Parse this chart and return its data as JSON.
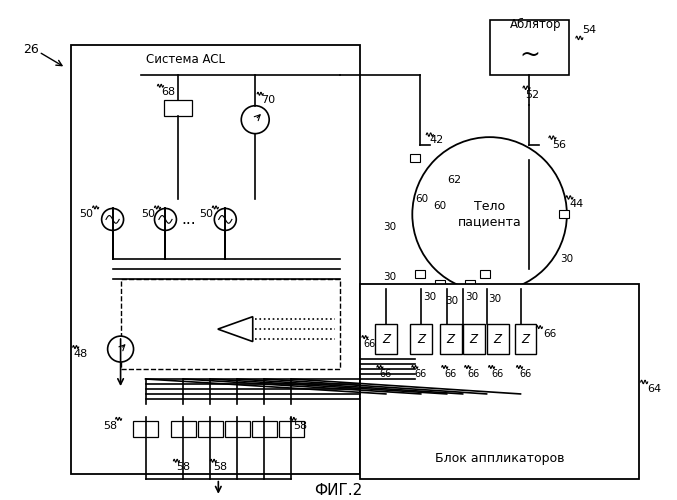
{
  "title": "ФИГ.2",
  "bg_color": "#ffffff",
  "line_color": "#000000",
  "label_26": "26",
  "label_acl": "Система ACL",
  "label_ablator": "Аблятор",
  "label_body": "Тело\nпациента",
  "label_applicators": "Блок аппликаторов",
  "fig_label": "ФИГ.2"
}
